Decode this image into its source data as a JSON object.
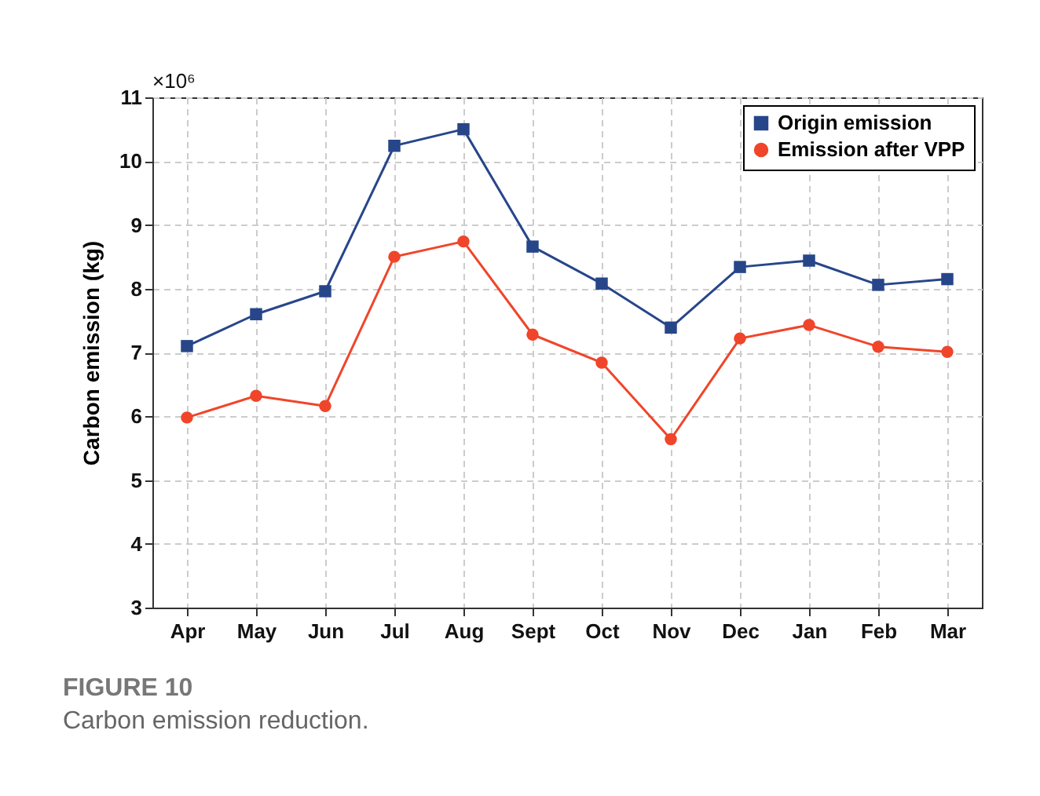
{
  "chart_data": {
    "type": "line",
    "ylabel": "Carbon emission (kg)",
    "categories": [
      "Apr",
      "May",
      "Jun",
      "Jul",
      "Aug",
      "Sept",
      "Oct",
      "Nov",
      "Dec",
      "Jan",
      "Feb",
      "Mar"
    ],
    "series": [
      {
        "name": "Origin emission",
        "color": "#27468a",
        "marker": "square",
        "values": [
          7.1,
          7.6,
          7.96,
          10.24,
          10.5,
          8.66,
          8.08,
          7.39,
          8.34,
          8.44,
          8.06,
          8.15
        ]
      },
      {
        "name": "Emission after VPP",
        "color": "#f0452a",
        "marker": "circle",
        "values": [
          5.98,
          6.32,
          6.16,
          8.5,
          8.74,
          7.28,
          6.84,
          5.64,
          7.22,
          7.43,
          7.09,
          7.01
        ]
      }
    ],
    "ylim": [
      3,
      11
    ],
    "yticks": [
      3,
      4,
      5,
      6,
      7,
      8,
      9,
      10,
      11
    ],
    "grid": true,
    "legend": "top right",
    "annotations": [
      "×10⁶",
      "FIGURE 10",
      "Carbon emission reduction."
    ]
  }
}
